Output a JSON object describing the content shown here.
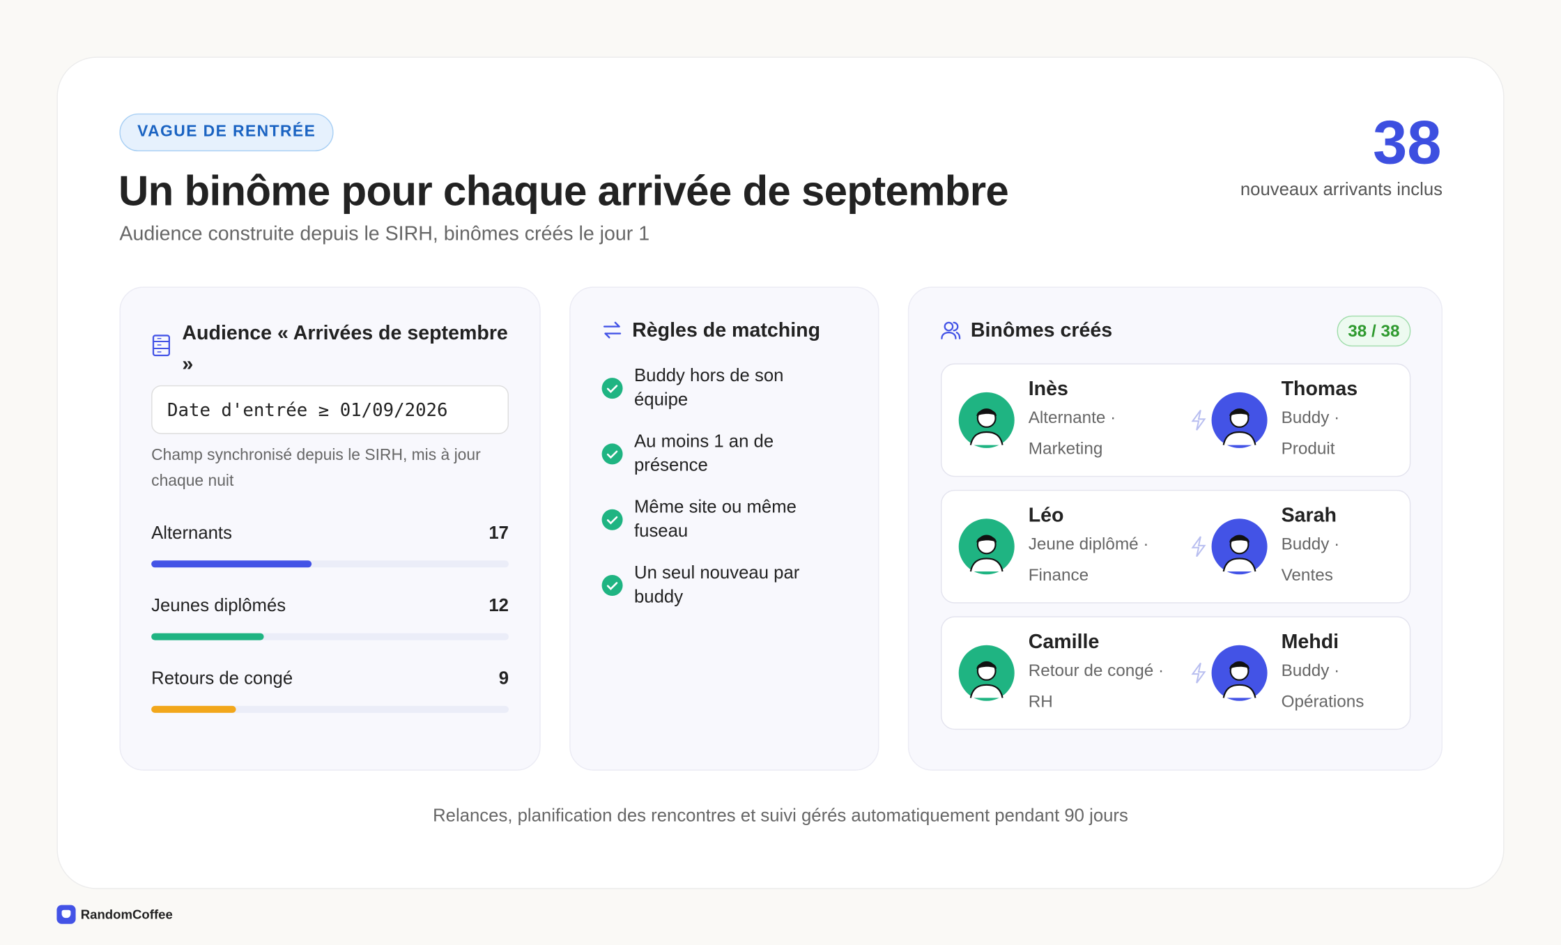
{
  "header": {
    "badge": "VAGUE DE RENTRÉE",
    "title": "Un binôme pour chaque arrivée de septembre",
    "subtitle": "Audience construite depuis le SIRH, binômes créés le jour 1"
  },
  "stat": {
    "value": 38,
    "label": "nouveaux arrivants inclus"
  },
  "audience": {
    "title": "Audience « Arrivées de septembre »",
    "filter": "Date d'entrée ≥ 01/09/2026",
    "note": "Champ synchronisé depuis le SIRH, mis à jour chaque nuit",
    "groups": [
      {
        "label": "Alternants",
        "value": 17,
        "color": "#4353e6"
      },
      {
        "label": "Jeunes diplômés",
        "value": 12,
        "color": "#1fb482"
      },
      {
        "label": "Retours de congé",
        "value": 9,
        "color": "#f2a71b"
      }
    ]
  },
  "rules": {
    "title": "Règles de matching",
    "items": [
      "Buddy hors de son équipe",
      "Au moins 1 an de présence",
      "Même site ou même fuseau",
      "Un seul nouveau par buddy"
    ]
  },
  "pairs": {
    "title": "Binômes créés",
    "count": "38 / 38",
    "items": [
      {
        "newcomer": {
          "name": "Inès",
          "detail": "Alternante · Marketing"
        },
        "buddy": {
          "name": "Thomas",
          "detail": "Buddy · Produit"
        }
      },
      {
        "newcomer": {
          "name": "Léo",
          "detail": "Jeune diplômé · Finance"
        },
        "buddy": {
          "name": "Sarah",
          "detail": "Buddy · Ventes"
        }
      },
      {
        "newcomer": {
          "name": "Camille",
          "detail": "Retour de congé · RH"
        },
        "buddy": {
          "name": "Mehdi",
          "detail": "Buddy · Opérations"
        }
      }
    ]
  },
  "footer": "Relances, planification des rencontres et suivi gérés automatiquement pendant 90 jours",
  "brand": "RandomCoffee"
}
